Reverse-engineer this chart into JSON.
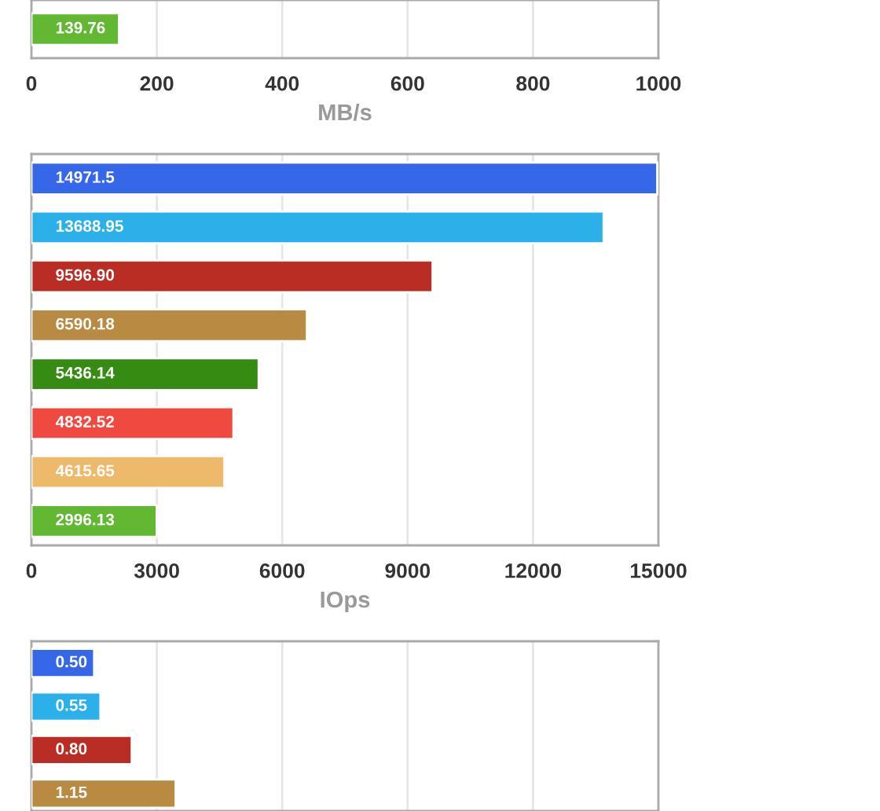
{
  "chart_data": [
    {
      "type": "bar",
      "orientation": "horizontal",
      "categories": [
        null
      ],
      "values": [
        139.76
      ],
      "colors": [
        "#62b832"
      ],
      "data_labels": true,
      "xlim": [
        0,
        1000
      ],
      "xticks": [
        0,
        200,
        400,
        600,
        800,
        1000
      ],
      "xlabel": "MB/s",
      "grid": "x",
      "tick_labels": "x"
    },
    {
      "type": "bar",
      "orientation": "horizontal",
      "categories": [
        null,
        null,
        null,
        null,
        null,
        null,
        null,
        null
      ],
      "values": [
        14971.5,
        13688.95,
        9596.9,
        6590.18,
        5436.14,
        4832.52,
        4615.65,
        2996.13
      ],
      "value_labels": [
        "14971.5",
        "13688.95",
        "9596.90",
        "6590.18",
        "5436.14",
        "4832.52",
        "4615.65",
        "2996.13"
      ],
      "colors": [
        "#3567e8",
        "#2bb0ea",
        "#b92d24",
        "#b98a42",
        "#368b13",
        "#f04a40",
        "#edb96b",
        "#62b832"
      ],
      "xlim": [
        0,
        15000
      ],
      "xticks": [
        0,
        3000,
        6000,
        9000,
        12000,
        15000
      ],
      "xlabel": "IOps",
      "grid": "x",
      "tick_labels": "x"
    },
    {
      "type": "bar",
      "orientation": "horizontal",
      "categories": [
        null,
        null,
        null,
        null
      ],
      "values": [
        0.5,
        0.55,
        0.8,
        1.15
      ],
      "value_labels": [
        "0.50",
        "0.55",
        "0.80",
        "1.15"
      ],
      "colors": [
        "#3567e8",
        "#2bb0ea",
        "#b92d24",
        "#b98a42"
      ],
      "xlim": [
        0,
        5
      ],
      "xticks": [
        {
          "value": 0,
          "label": null
        },
        {
          "value": 1,
          "label": null
        },
        {
          "value": 2,
          "label": null
        },
        {
          "value": 3,
          "label": null
        },
        {
          "value": 4,
          "label": null
        },
        {
          "value": 5,
          "label": null
        }
      ],
      "grid": "x",
      "tick_labels": false
    }
  ]
}
